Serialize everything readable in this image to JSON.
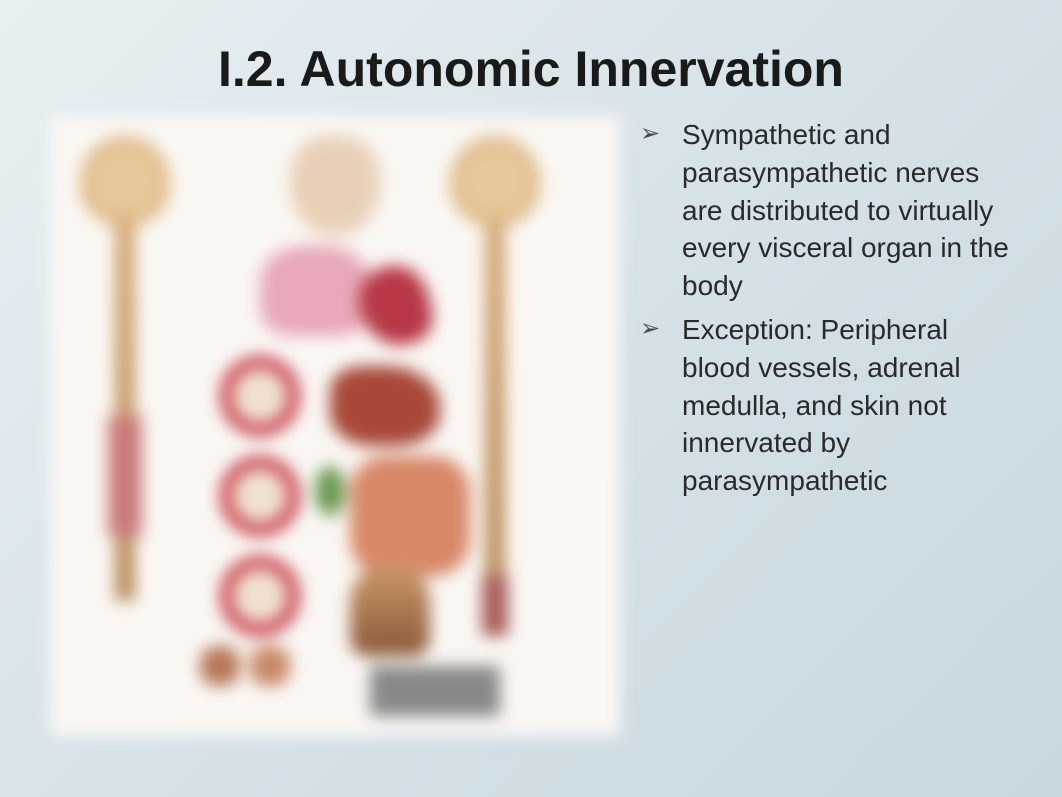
{
  "slide": {
    "title": "I.2. Autonomic Innervation",
    "bullets": [
      "Sympathetic and parasympathetic nerves are distributed to virtually every visceral organ in the body",
      "Exception: Peripheral blood vessels, adrenal medulla, and skin not innervated by parasympathetic"
    ],
    "title_fontsize": 50,
    "bullet_fontsize": 28,
    "text_color": "#2a2a2a",
    "background_gradient": [
      "#e8eff2",
      "#d5e2e8",
      "#c8d8df"
    ],
    "diagram": {
      "description": "Blurred anatomical diagram showing autonomic nervous system innervation of visceral organs with left (sympathetic) and right (parasympathetic) spinal columns",
      "blurred": true,
      "organs_depicted": [
        "brain",
        "spinal_cord",
        "head",
        "lungs",
        "heart",
        "liver",
        "intestines",
        "bladder"
      ],
      "palette": {
        "brain": "#e8c89a",
        "spine": "#d4a876",
        "lungs": "#e8a8b8",
        "heart": "#b83848",
        "liver": "#a84838",
        "intestine": "#d88868",
        "circle_ring": "#c83848",
        "green_organ": "#6a9850",
        "bladder": "#8a5838",
        "background": "#faf7f3"
      }
    }
  }
}
